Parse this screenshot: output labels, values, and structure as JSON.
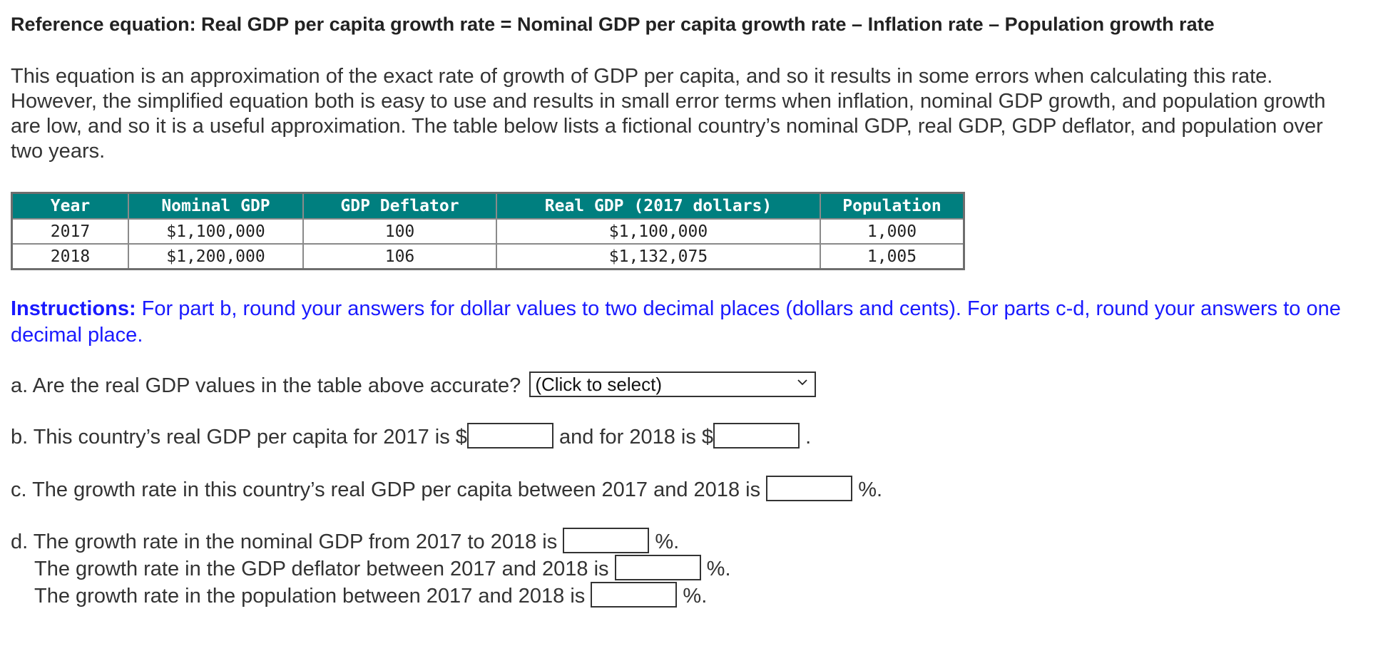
{
  "reference": {
    "equation": "Reference equation: Real GDP per capita growth rate = Nominal GDP per capita growth rate – Inflation rate – Population growth rate"
  },
  "intro": {
    "text": "This equation is an approximation of the exact rate of growth of GDP per capita, and so it results in some errors when calculating this rate. However, the simplified equation both is easy to use and results in small error terms when inflation, nominal GDP growth, and population growth are low, and so it is a useful approximation. The table below lists a fictional country’s nominal GDP, real GDP, GDP deflator, and population over two years."
  },
  "table": {
    "headers": [
      "Year",
      "Nominal GDP",
      "GDP Deflator",
      "Real GDP (2017 dollars)",
      "Population"
    ],
    "rows": [
      [
        "2017",
        "$1,100,000",
        "100",
        "$1,100,000",
        "1,000"
      ],
      [
        "2018",
        "$1,200,000",
        "106",
        "$1,132,075",
        "1,005"
      ]
    ],
    "header_color": "#007f7f"
  },
  "instructions": {
    "lead": "Instructions:",
    "text": " For part b, round your answers for dollar values to two decimal places (dollars and cents). For parts c-d, round your answers to one decimal place.",
    "color": "#1a1aff"
  },
  "questions": {
    "a": {
      "prefix": "a. Are the real GDP values in the table above accurate?",
      "select_value": "(Click to select)"
    },
    "b": {
      "prefix": "b. This country’s real GDP per capita for 2017 is $",
      "middle": " and for 2018 is $",
      "suffix": "."
    },
    "c": {
      "prefix": "c. The growth rate in this country’s real GDP per capita between 2017 and 2018 is",
      "suffix": "%."
    },
    "d": {
      "line1_prefix": "d. The growth rate in the nominal GDP from 2017 to 2018 is",
      "line1_suffix": "%.",
      "line2_prefix": "The growth rate in the GDP deflator between 2017 and 2018 is",
      "line2_suffix": "%.",
      "line3_prefix": "The growth rate in the population between 2017 and 2018 is",
      "line3_suffix": "%."
    }
  },
  "icons": {
    "select_chevron": "chevron-down-icon"
  }
}
